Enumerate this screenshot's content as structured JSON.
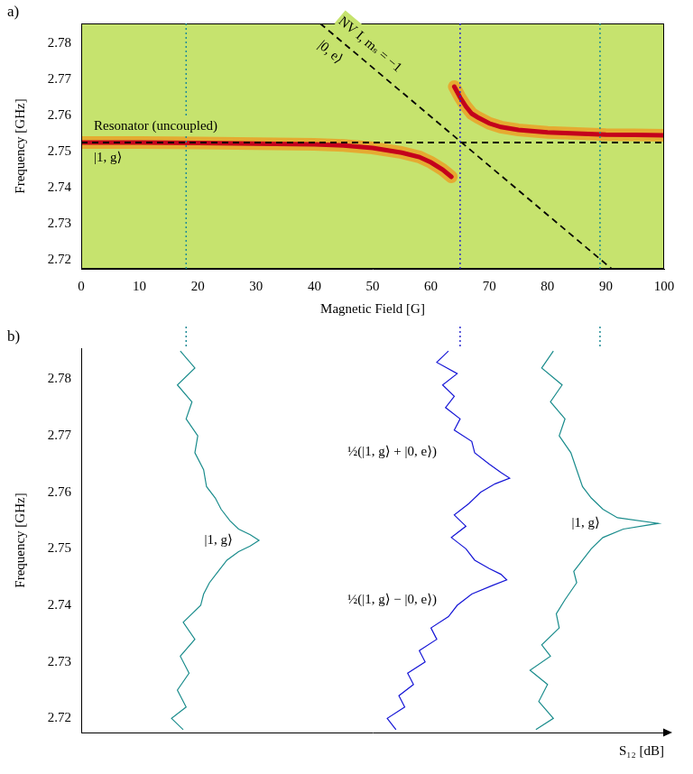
{
  "chart_data": [
    {
      "type": "line",
      "panel": "a)",
      "x_label": "Magnetic Field [G]",
      "y_label": "Frequency [GHz]",
      "xlim": [
        0,
        100
      ],
      "xticks": [
        0,
        10,
        20,
        30,
        40,
        50,
        60,
        70,
        80,
        90,
        100
      ],
      "ylim": [
        2.7175,
        2.7855
      ],
      "yticks": [
        2.72,
        2.73,
        2.74,
        2.75,
        2.76,
        2.77,
        2.78
      ],
      "grid": false,
      "field_markers": [
        {
          "value": 18,
          "color": "#1f8c96"
        },
        {
          "value": 65,
          "color": "#2a2ad0"
        },
        {
          "value": 89,
          "color": "#1f8c96"
        }
      ],
      "series": [
        {
          "x": [
            0,
            100
          ],
          "y": [
            2.7525,
            2.7525
          ],
          "color": "#000000",
          "line_style": "dashed",
          "marker": "none",
          "labels": [
            "Resonator (uncoupled)",
            "|1, g⟩"
          ]
        },
        {
          "x": [
            41,
            91
          ],
          "y": [
            2.7855,
            2.7175
          ],
          "color": "#000000",
          "line_style": "dashed",
          "marker": "none",
          "labels": [
            "NV I, mₛ = −1",
            "|0, e⟩"
          ]
        },
        {
          "x": [
            0,
            10,
            20,
            30,
            40,
            45,
            50,
            55,
            58,
            60,
            62,
            63.5
          ],
          "y": [
            2.7525,
            2.7525,
            2.7524,
            2.7522,
            2.752,
            2.7517,
            2.751,
            2.7497,
            2.7485,
            2.747,
            2.745,
            2.743
          ],
          "color": "#c4001c",
          "line_style": "solid",
          "marker": "none"
        },
        {
          "x": [
            64,
            65,
            66,
            67,
            68,
            70,
            72,
            75,
            80,
            85,
            90,
            95,
            100
          ],
          "y": [
            2.768,
            2.765,
            2.7625,
            2.7605,
            2.7595,
            2.7578,
            2.7568,
            2.756,
            2.7553,
            2.755,
            2.7547,
            2.7546,
            2.7545
          ],
          "color": "#c4001c",
          "line_style": "solid",
          "marker": "none"
        }
      ]
    },
    {
      "type": "line",
      "panel": "b)",
      "x_label": "S₁₂ [dB]",
      "y_label": "Frequency [GHz]",
      "xlim": [
        0,
        100
      ],
      "ylim": [
        2.7175,
        2.7855
      ],
      "yticks": [
        2.72,
        2.73,
        2.74,
        2.75,
        2.76,
        2.77,
        2.78
      ],
      "tick_labels": "y",
      "grid": false,
      "series": [
        {
          "color": "#1a8c8c",
          "line_style": "solid",
          "marker": "none",
          "x": [
            17,
            19.5,
            16.5,
            19,
            18,
            20,
            19.5,
            21,
            21.5,
            23,
            24,
            25.5,
            27,
            29,
            30.5,
            29,
            27,
            25,
            23.5,
            22,
            21,
            20.5,
            17.5,
            19.5,
            17,
            18.5,
            16.5,
            18,
            15.5,
            17.5
          ],
          "y": [
            2.785,
            2.782,
            2.779,
            2.776,
            2.773,
            2.77,
            2.767,
            2.764,
            2.761,
            2.759,
            2.757,
            2.755,
            2.7535,
            2.7525,
            2.7515,
            2.7505,
            2.7495,
            2.748,
            2.746,
            2.744,
            2.742,
            2.74,
            2.737,
            2.734,
            2.731,
            2.728,
            2.725,
            2.722,
            2.72,
            2.718
          ]
        },
        {
          "color": "#1515d6",
          "line_style": "solid",
          "marker": "none",
          "x": [
            63,
            61,
            64.5,
            62,
            64,
            62.5,
            65,
            64,
            67,
            67.5,
            70,
            72,
            73.5,
            71,
            68.5,
            66.5,
            64,
            66,
            63.5,
            66,
            67.5,
            70,
            72,
            73,
            70.5,
            67,
            64.5,
            63,
            60,
            61,
            58,
            59,
            56,
            57,
            54.5,
            55.5,
            52.5,
            54
          ],
          "y": [
            2.785,
            2.783,
            2.781,
            2.779,
            2.777,
            2.775,
            2.773,
            2.771,
            2.769,
            2.767,
            2.765,
            2.7635,
            2.7625,
            2.7615,
            2.76,
            2.758,
            2.756,
            2.754,
            2.752,
            2.75,
            2.748,
            2.7465,
            2.7455,
            2.7445,
            2.7435,
            2.742,
            2.74,
            2.738,
            2.736,
            2.734,
            2.732,
            2.73,
            2.728,
            2.726,
            2.724,
            2.722,
            2.72,
            2.718
          ]
        },
        {
          "color": "#1a8c8c",
          "line_style": "solid",
          "marker": "none",
          "x": [
            81,
            79,
            82.5,
            80.5,
            83,
            82,
            84,
            85,
            86,
            87.5,
            89.5,
            92,
            99,
            93,
            89.5,
            87.5,
            86,
            84.5,
            85,
            83,
            81.5,
            82,
            79,
            80.5,
            77,
            80,
            78.5,
            81,
            78
          ],
          "y": [
            2.785,
            2.782,
            2.779,
            2.776,
            2.773,
            2.77,
            2.767,
            2.764,
            2.761,
            2.759,
            2.757,
            2.7555,
            2.7545,
            2.7535,
            2.752,
            2.75,
            2.748,
            2.746,
            2.744,
            2.741,
            2.7385,
            2.736,
            2.733,
            2.731,
            2.7285,
            2.726,
            2.723,
            2.72,
            2.718
          ]
        }
      ],
      "annotations": [
        {
          "text": "|1, g⟩",
          "x": 26,
          "y": 2.7515
        },
        {
          "text": "½(|1, g⟩ + |0, e⟩)",
          "x": 61,
          "y": 2.7672
        },
        {
          "text": "½(|1, g⟩ − |0, e⟩)",
          "x": 61,
          "y": 2.741
        },
        {
          "text": "|1, g⟩",
          "x": 89,
          "y": 2.7545
        }
      ]
    }
  ]
}
